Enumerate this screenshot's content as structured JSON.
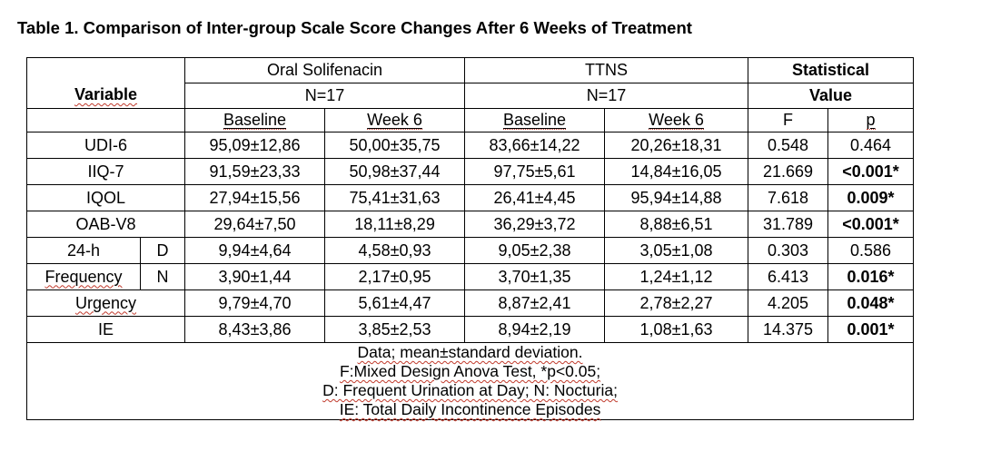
{
  "caption": "Table 1. Comparison of Inter-group Scale Score Changes After 6 Weeks of Treatment",
  "header": {
    "variable": "Variable",
    "group1_name": "Oral Solifenacin",
    "group1_n": "N=17",
    "group2_name": "TTNS",
    "group2_n": "N=17",
    "stat_line1": "Statistical",
    "stat_line2": "Value",
    "baseline": "Baseline",
    "week6": "Week 6",
    "f": "F",
    "p": "p"
  },
  "rows": [
    {
      "label": "UDI-6",
      "g1_base": "95,09±12,86",
      "g1_w6": "50,00±35,75",
      "g2_base": "83,66±14,22",
      "g2_w6": "20,26±18,31",
      "f": "0.548",
      "p": "0.464",
      "p_bold": false
    },
    {
      "label": "IIQ-7",
      "g1_base": "91,59±23,33",
      "g1_w6": "50,98±37,44",
      "g2_base": "97,75±5,61",
      "g2_w6": "14,84±16,05",
      "f": "21.669",
      "p": "<0.001*",
      "p_bold": true
    },
    {
      "label": "IQOL",
      "g1_base": "27,94±15,56",
      "g1_w6": "75,41±31,63",
      "g2_base": "26,41±4,45",
      "g2_w6": "95,94±14,88",
      "f": "7.618",
      "p": "0.009*",
      "p_bold": true
    },
    {
      "label": "OAB-V8",
      "g1_base": "29,64±7,50",
      "g1_w6": "18,11±8,29",
      "g2_base": "36,29±3,72",
      "g2_w6": "8,88±6,51",
      "f": "31.789",
      "p": "<0.001*",
      "p_bold": true
    }
  ],
  "freq": {
    "label_top": "24-h",
    "label_bottom": "Frequency",
    "sub": [
      {
        "code": "D",
        "g1_base": "9,94±4,64",
        "g1_w6": "4,58±0,93",
        "g2_base": "9,05±2,38",
        "g2_w6": "3,05±1,08",
        "f": "0.303",
        "p": "0.586"
      },
      {
        "code": "N",
        "g1_base": "3,90±1,44",
        "g1_w6": "2,17±0,95",
        "g2_base": "3,70±1,35",
        "g2_w6": "1,24±1,12",
        "f": "6.413",
        "p": "0.016*"
      }
    ]
  },
  "rows2": [
    {
      "label": "Urgency",
      "g1_base": "9,79±4,70",
      "g1_w6": "5,61±4,47",
      "g2_base": "8,87±2,41",
      "g2_w6": "2,78±2,27",
      "f": "4.205",
      "p": "0.048*"
    },
    {
      "label": "IE",
      "g1_base": "8,43±3,86",
      "g1_w6": "3,85±2,53",
      "g2_base": "8,94±2,19",
      "g2_w6": "1,08±1,63",
      "f": "14.375",
      "p": "0.001*"
    }
  ],
  "notes": {
    "line1": "Data; mean±standard deviation.",
    "line2": "F:Mixed Design Anova Test,  *p<0.05;",
    "line3": "D: Frequent Urination at Day;  N: Nocturia;",
    "line4": "IE: Total Daily Incontinence Episodes"
  }
}
